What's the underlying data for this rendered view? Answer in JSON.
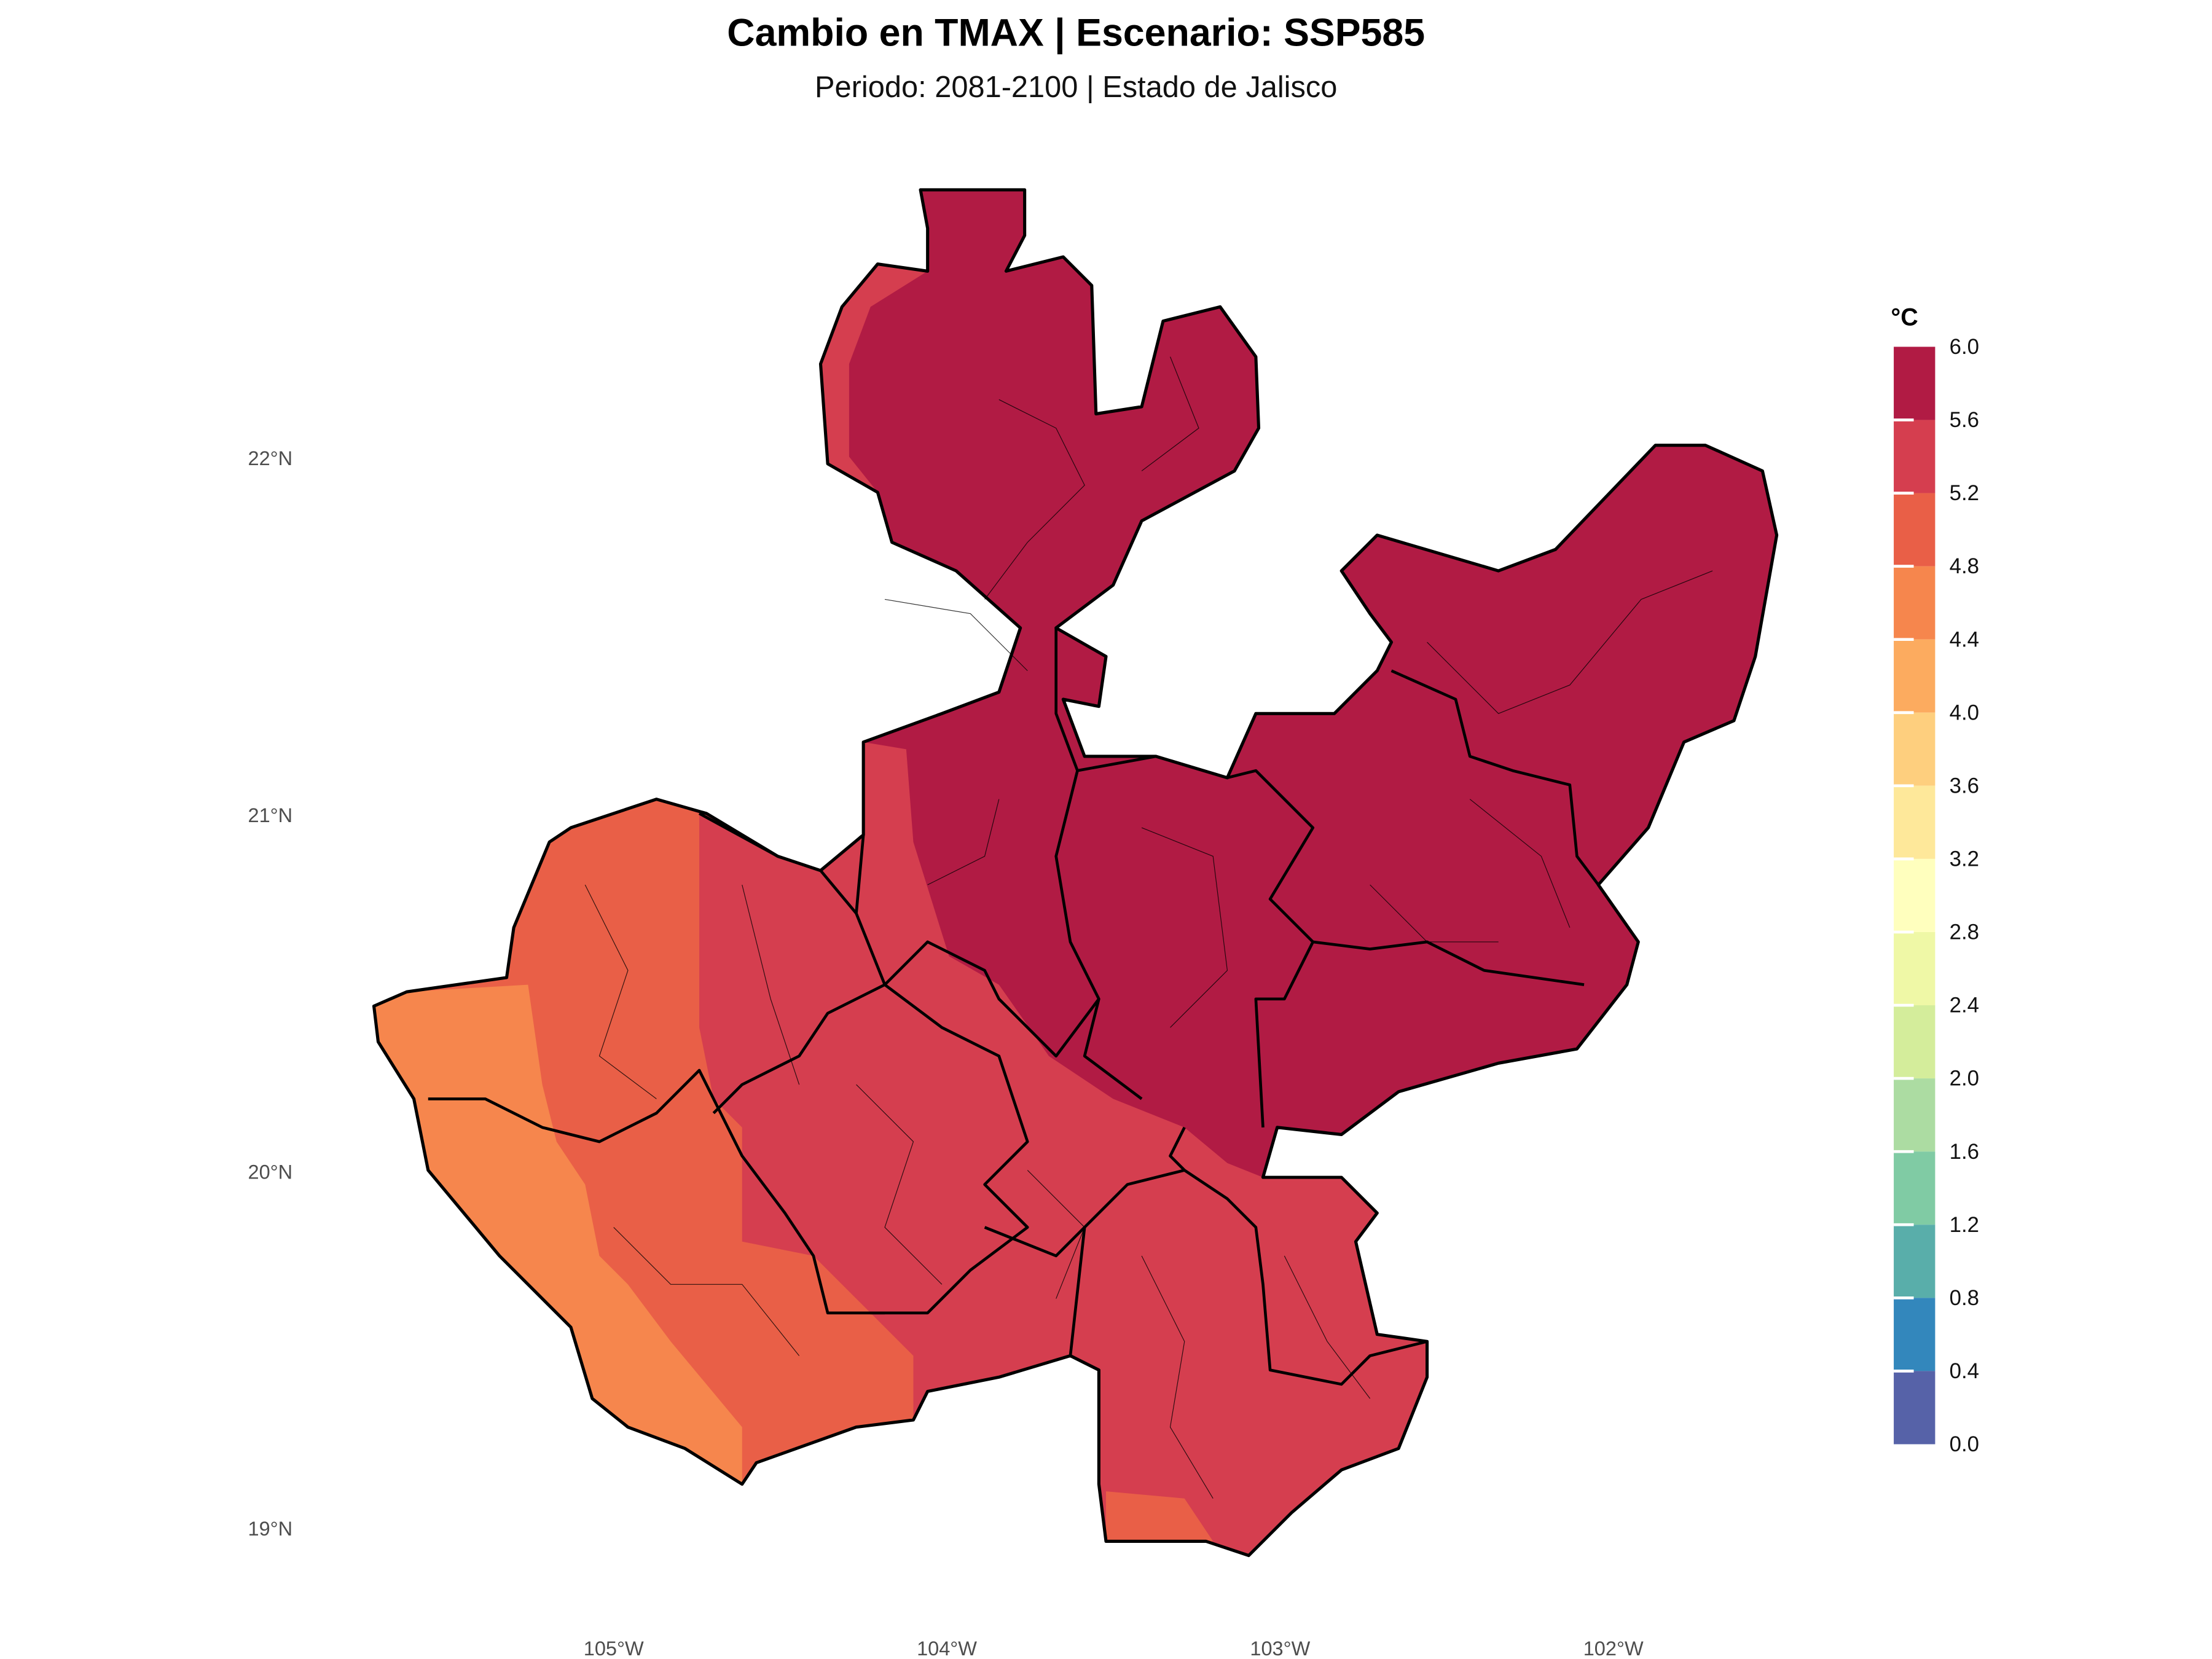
{
  "title": "Cambio en TMAX | Escenario: SSP585",
  "subtitle": "Periodo: 2081-2100 | Estado de Jalisco",
  "chart_data": {
    "type": "heatmap",
    "title": "Cambio en TMAX | Escenario: SSP585",
    "subtitle": "Periodo: 2081-2100 | Estado de Jalisco",
    "x_ticks": [
      "105°W",
      "104°W",
      "103°W",
      "102°W"
    ],
    "y_ticks": [
      "22°N",
      "21°N",
      "20°N",
      "19°N"
    ],
    "legend": {
      "title": "°C",
      "placement": "right",
      "breaks": [
        "6.0",
        "5.6",
        "5.2",
        "4.8",
        "4.4",
        "4.0",
        "3.6",
        "3.2",
        "2.8",
        "2.4",
        "2.0",
        "1.6",
        "1.2",
        "0.8",
        "0.4",
        "0.0"
      ],
      "colors": [
        "#b11b44",
        "#d53e4f",
        "#e95f47",
        "#f6864d",
        "#fcab5f",
        "#fecf7e",
        "#fee89a",
        "#ffffbe",
        "#eff8a6",
        "#d4ed9b",
        "#acdca2",
        "#80cba4",
        "#59aeaa",
        "#3387bc",
        "#5662a8"
      ]
    },
    "bins_present": [
      [
        4.4,
        4.8
      ],
      [
        4.8,
        5.2
      ],
      [
        5.2,
        5.6
      ],
      [
        5.6,
        6.0
      ]
    ],
    "grid": false
  }
}
